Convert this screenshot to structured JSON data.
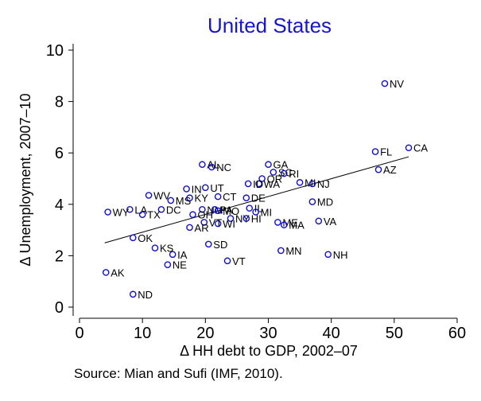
{
  "chart_data": {
    "type": "scatter",
    "title": "United States",
    "xlabel": "Δ HH debt to GDP, 2002–07",
    "ylabel": "Δ Unemployment, 2007–10",
    "source": "Source: Mian and Sufi (IMF, 2010).",
    "xlim": [
      0,
      60
    ],
    "ylim": [
      0,
      10
    ],
    "xticks": [
      0,
      10,
      20,
      30,
      40,
      50,
      60
    ],
    "yticks": [
      0,
      2,
      4,
      6,
      8,
      10
    ],
    "grid": false,
    "marker_color": "#1010cc",
    "title_color": "#1515cc",
    "fit_line": {
      "x": [
        4,
        52.3
      ],
      "y": [
        2.5,
        5.85
      ]
    },
    "points": [
      {
        "label": "NV",
        "x": 48.5,
        "y": 8.7
      },
      {
        "label": "CA",
        "x": 52.3,
        "y": 6.2
      },
      {
        "label": "FL",
        "x": 47.0,
        "y": 6.05
      },
      {
        "label": "AZ",
        "x": 47.5,
        "y": 5.35
      },
      {
        "label": "AL",
        "x": 19.5,
        "y": 5.55
      },
      {
        "label": "NC",
        "x": 21.0,
        "y": 5.45
      },
      {
        "label": "GA",
        "x": 30.0,
        "y": 5.55
      },
      {
        "label": "SC",
        "x": 30.8,
        "y": 5.25
      },
      {
        "label": "RI",
        "x": 32.5,
        "y": 5.2
      },
      {
        "label": "OR",
        "x": 29.0,
        "y": 5.0
      },
      {
        "label": "WA",
        "x": 28.5,
        "y": 4.8
      },
      {
        "label": "ID",
        "x": 26.8,
        "y": 4.8
      },
      {
        "label": "MI",
        "x": 35.0,
        "y": 4.85
      },
      {
        "label": "NJ",
        "x": 37.0,
        "y": 4.8
      },
      {
        "label": "IN",
        "x": 17.0,
        "y": 4.6
      },
      {
        "label": "UT",
        "x": 20.0,
        "y": 4.65
      },
      {
        "label": "CT",
        "x": 22.0,
        "y": 4.3
      },
      {
        "label": "DE",
        "x": 26.5,
        "y": 4.25
      },
      {
        "label": "WV",
        "x": 11.0,
        "y": 4.35
      },
      {
        "label": "KY",
        "x": 17.5,
        "y": 4.25
      },
      {
        "label": "MS",
        "x": 14.5,
        "y": 4.15
      },
      {
        "label": "MD",
        "x": 37.0,
        "y": 4.1
      },
      {
        "label": "LA",
        "x": 8.0,
        "y": 3.8
      },
      {
        "label": "DC",
        "x": 13.0,
        "y": 3.8
      },
      {
        "label": "TX",
        "x": 10.0,
        "y": 3.6
      },
      {
        "label": "WY",
        "x": 4.5,
        "y": 3.7
      },
      {
        "label": "NM",
        "x": 19.5,
        "y": 3.8
      },
      {
        "label": "PA",
        "x": 21.5,
        "y": 3.8
      },
      {
        "label": "MO",
        "x": 22.0,
        "y": 3.75
      },
      {
        "label": "IL",
        "x": 27.0,
        "y": 3.85
      },
      {
        "label": "MI",
        "x": 28.0,
        "y": 3.7
      },
      {
        "label": "OH",
        "x": 18.0,
        "y": 3.6
      },
      {
        "label": "NY",
        "x": 24.0,
        "y": 3.45
      },
      {
        "label": "HI",
        "x": 26.5,
        "y": 3.45
      },
      {
        "label": "WI",
        "x": 22.0,
        "y": 3.25
      },
      {
        "label": "VT",
        "x": 19.8,
        "y": 3.3
      },
      {
        "label": "ME",
        "x": 31.5,
        "y": 3.3
      },
      {
        "label": "MA",
        "x": 32.5,
        "y": 3.2
      },
      {
        "label": "VA",
        "x": 38.0,
        "y": 3.35
      },
      {
        "label": "AR",
        "x": 17.5,
        "y": 3.1
      },
      {
        "label": "OK",
        "x": 8.5,
        "y": 2.7
      },
      {
        "label": "SD",
        "x": 20.5,
        "y": 2.45
      },
      {
        "label": "KS",
        "x": 12.0,
        "y": 2.3
      },
      {
        "label": "IA",
        "x": 14.8,
        "y": 2.05
      },
      {
        "label": "MN",
        "x": 32.0,
        "y": 2.2
      },
      {
        "label": "NH",
        "x": 39.5,
        "y": 2.05
      },
      {
        "label": "VT",
        "x": 23.5,
        "y": 1.8
      },
      {
        "label": "NE",
        "x": 14.0,
        "y": 1.65
      },
      {
        "label": "AK",
        "x": 4.2,
        "y": 1.35
      },
      {
        "label": "ND",
        "x": 8.5,
        "y": 0.5
      }
    ]
  }
}
